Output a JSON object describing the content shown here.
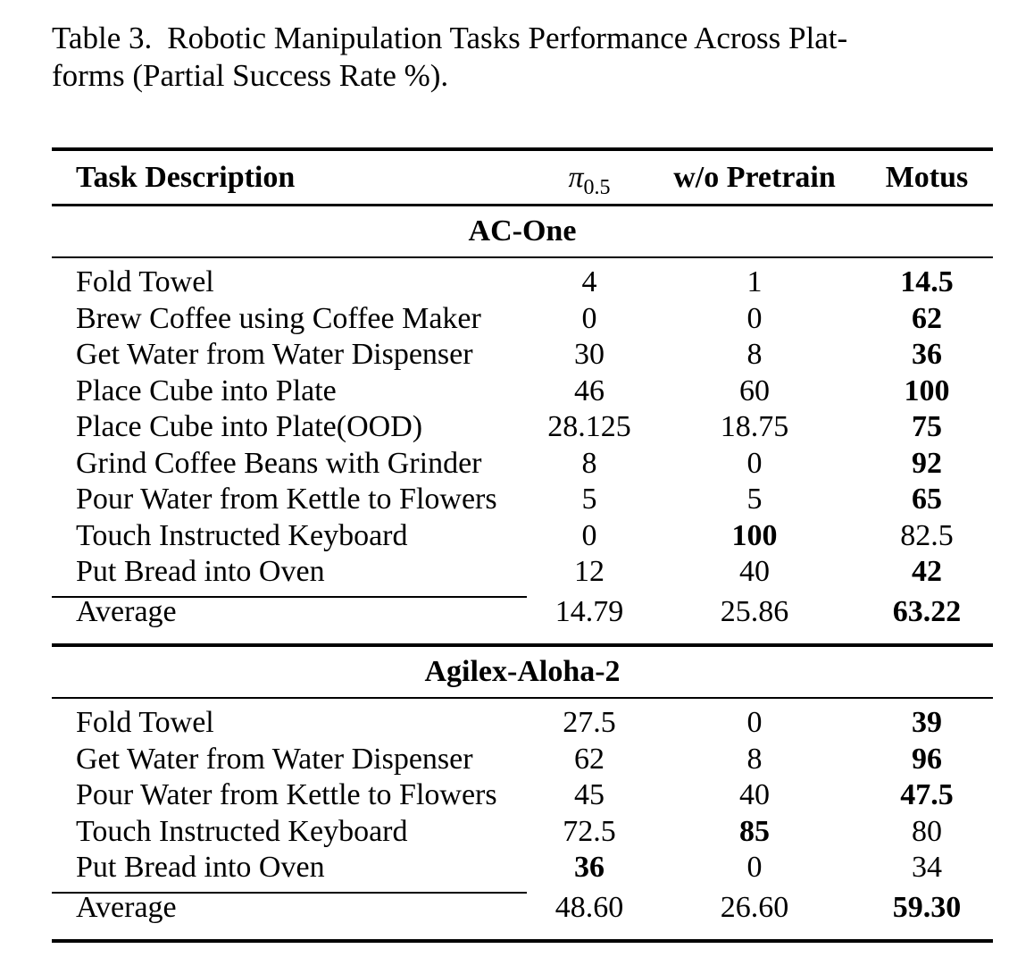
{
  "caption": {
    "label": "Table 3.",
    "line1_rest": "Robotic Manipulation Tasks Performance Across Plat-",
    "line2": "forms (Partial Success Rate %)."
  },
  "table": {
    "header": {
      "task": "Task Description",
      "pi_symbol": "π",
      "pi_sub": "0.5",
      "wo_pretrain": "w/o Pretrain",
      "motus": "Motus"
    },
    "sections": [
      {
        "name": "AC-One",
        "rows": [
          {
            "task": "Fold Towel",
            "values": [
              "4",
              "1",
              "14.5"
            ],
            "bold": [
              false,
              false,
              true
            ]
          },
          {
            "task": "Brew Coffee using Coffee Maker",
            "values": [
              "0",
              "0",
              "62"
            ],
            "bold": [
              false,
              false,
              true
            ]
          },
          {
            "task": "Get Water from Water Dispenser",
            "values": [
              "30",
              "8",
              "36"
            ],
            "bold": [
              false,
              false,
              true
            ]
          },
          {
            "task": "Place Cube into Plate",
            "values": [
              "46",
              "60",
              "100"
            ],
            "bold": [
              false,
              false,
              true
            ]
          },
          {
            "task": "Place Cube into Plate(OOD)",
            "values": [
              "28.125",
              "18.75",
              "75"
            ],
            "bold": [
              false,
              false,
              true
            ]
          },
          {
            "task": "Grind Coffee Beans with Grinder",
            "values": [
              "8",
              "0",
              "92"
            ],
            "bold": [
              false,
              false,
              true
            ]
          },
          {
            "task": "Pour Water from Kettle to Flowers",
            "values": [
              "5",
              "5",
              "65"
            ],
            "bold": [
              false,
              false,
              true
            ]
          },
          {
            "task": "Touch Instructed Keyboard",
            "values": [
              "0",
              "100",
              "82.5"
            ],
            "bold": [
              false,
              true,
              false
            ]
          },
          {
            "task": "Put Bread into Oven",
            "values": [
              "12",
              "40",
              "42"
            ],
            "bold": [
              false,
              false,
              true
            ]
          }
        ],
        "average": {
          "task": "Average",
          "values": [
            "14.79",
            "25.86",
            "63.22"
          ],
          "bold": [
            false,
            false,
            true
          ]
        }
      },
      {
        "name": "Agilex-Aloha-2",
        "rows": [
          {
            "task": "Fold Towel",
            "values": [
              "27.5",
              "0",
              "39"
            ],
            "bold": [
              false,
              false,
              true
            ]
          },
          {
            "task": "Get Water from Water Dispenser",
            "values": [
              "62",
              "8",
              "96"
            ],
            "bold": [
              false,
              false,
              true
            ]
          },
          {
            "task": "Pour Water from Kettle to Flowers",
            "values": [
              "45",
              "40",
              "47.5"
            ],
            "bold": [
              false,
              false,
              true
            ]
          },
          {
            "task": "Touch Instructed Keyboard",
            "values": [
              "72.5",
              "85",
              "80"
            ],
            "bold": [
              false,
              true,
              false
            ]
          },
          {
            "task": "Put Bread into Oven",
            "values": [
              "36",
              "0",
              "34"
            ],
            "bold": [
              true,
              false,
              false
            ]
          }
        ],
        "average": {
          "task": "Average",
          "values": [
            "48.60",
            "26.60",
            "59.30"
          ],
          "bold": [
            false,
            false,
            true
          ]
        }
      }
    ]
  }
}
